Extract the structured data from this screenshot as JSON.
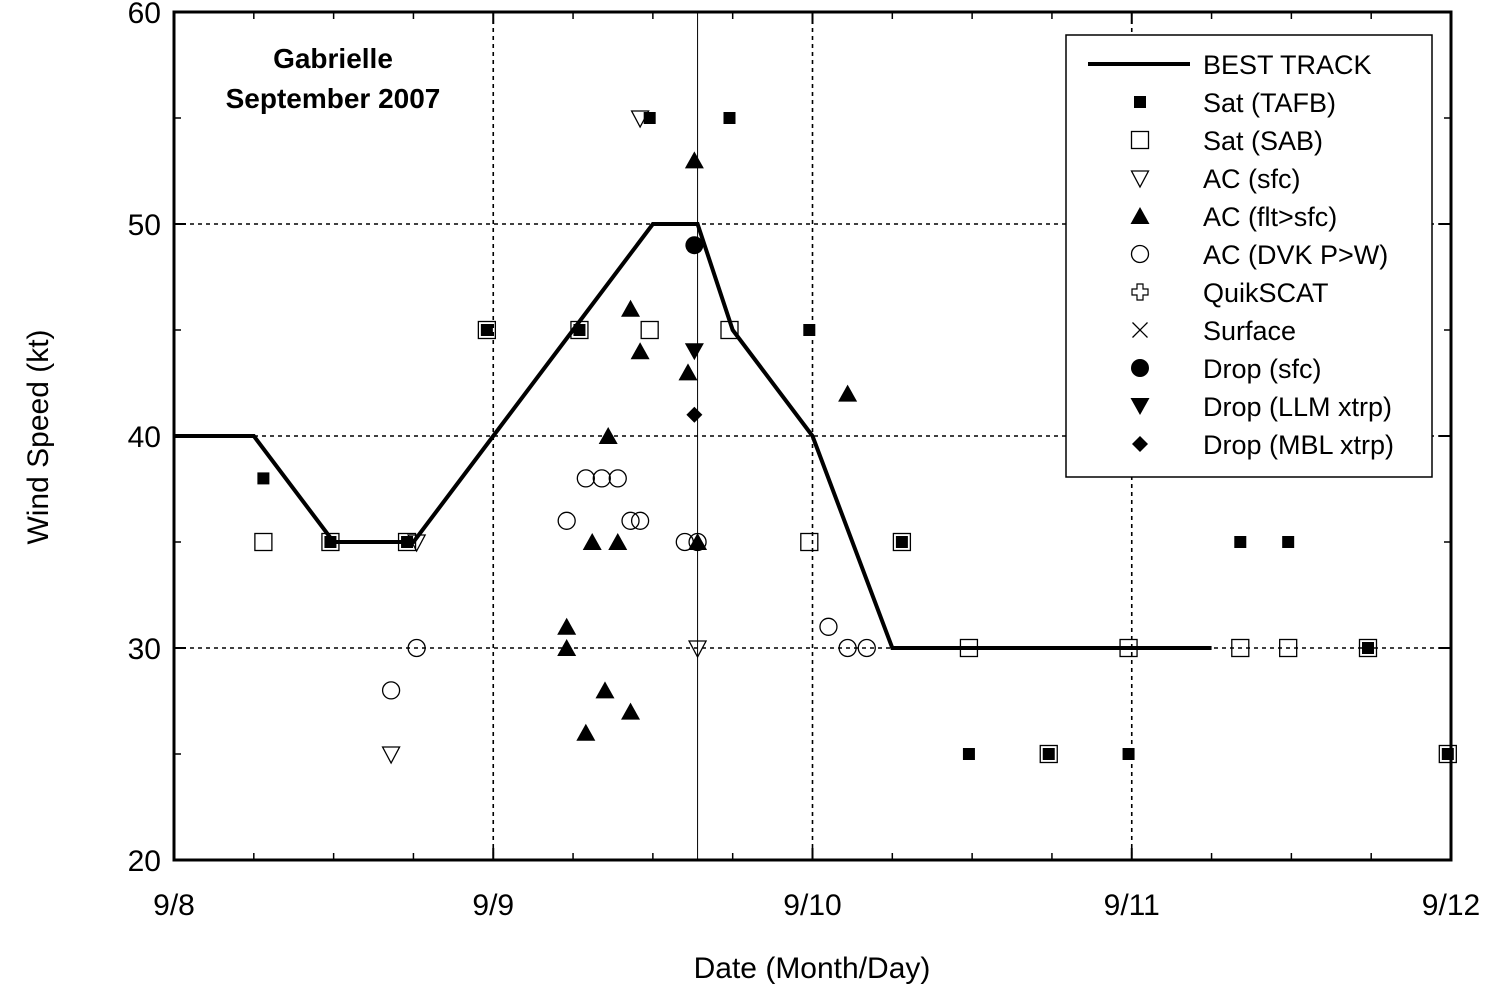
{
  "chart_data": {
    "type": "scatter",
    "title_lines": [
      "Gabrielle",
      "September 2007"
    ],
    "xlabel": "Date (Month/Day)",
    "ylabel": "Wind Speed (kt)",
    "x_unit": "days since 9/8",
    "xlim": [
      0,
      4
    ],
    "ylim": [
      20,
      60
    ],
    "x_ticks": [
      {
        "value": 0,
        "label": "9/8"
      },
      {
        "value": 1,
        "label": "9/9"
      },
      {
        "value": 2,
        "label": "9/10"
      },
      {
        "value": 3,
        "label": "9/11"
      },
      {
        "value": 4,
        "label": "9/12"
      }
    ],
    "y_ticks": [
      {
        "value": 20,
        "label": "20"
      },
      {
        "value": 30,
        "label": "30"
      },
      {
        "value": 40,
        "label": "40"
      },
      {
        "value": 50,
        "label": "50"
      },
      {
        "value": 60,
        "label": "60"
      }
    ],
    "grid": true,
    "legend_position": "top-right",
    "vertical_marker_x": 1.64,
    "series": [
      {
        "name": "BEST TRACK",
        "marker": "line",
        "points": [
          [
            0,
            40
          ],
          [
            0.25,
            40
          ],
          [
            0.5,
            35
          ],
          [
            0.75,
            35
          ],
          [
            1.0,
            40
          ],
          [
            1.25,
            45
          ],
          [
            1.5,
            50
          ],
          [
            1.64,
            50
          ],
          [
            1.75,
            45
          ],
          [
            2.0,
            40
          ],
          [
            2.25,
            30
          ],
          [
            2.5,
            30
          ],
          [
            2.75,
            30
          ],
          [
            3.0,
            30
          ],
          [
            3.25,
            30
          ]
        ]
      },
      {
        "name": "Sat (TAFB)",
        "marker": "filled-square",
        "points": [
          [
            0.28,
            38
          ],
          [
            0.49,
            35
          ],
          [
            0.73,
            35
          ],
          [
            0.98,
            45
          ],
          [
            1.27,
            45
          ],
          [
            1.49,
            55
          ],
          [
            1.74,
            55
          ],
          [
            1.99,
            45
          ],
          [
            2.28,
            35
          ],
          [
            2.49,
            25
          ],
          [
            2.74,
            25
          ],
          [
            2.99,
            25
          ],
          [
            3.34,
            35
          ],
          [
            3.49,
            35
          ],
          [
            3.74,
            30
          ],
          [
            3.99,
            25
          ]
        ]
      },
      {
        "name": "Sat (SAB)",
        "marker": "open-square",
        "points": [
          [
            0.28,
            35
          ],
          [
            0.49,
            35
          ],
          [
            0.73,
            35
          ],
          [
            0.98,
            45
          ],
          [
            1.27,
            45
          ],
          [
            1.49,
            45
          ],
          [
            1.74,
            45
          ],
          [
            1.99,
            35
          ],
          [
            2.28,
            35
          ],
          [
            2.49,
            30
          ],
          [
            2.74,
            25
          ],
          [
            2.99,
            30
          ],
          [
            3.34,
            30
          ],
          [
            3.49,
            30
          ],
          [
            3.74,
            30
          ],
          [
            3.99,
            25
          ]
        ]
      },
      {
        "name": "AC (sfc)",
        "marker": "open-triangle-down",
        "points": [
          [
            0.68,
            25
          ],
          [
            0.76,
            35
          ],
          [
            1.46,
            55
          ],
          [
            1.64,
            30
          ]
        ]
      },
      {
        "name": "AC (flt>sfc)",
        "marker": "filled-triangle-up",
        "points": [
          [
            1.23,
            31
          ],
          [
            1.23,
            30
          ],
          [
            1.29,
            26
          ],
          [
            1.31,
            35
          ],
          [
            1.35,
            28
          ],
          [
            1.36,
            40
          ],
          [
            1.39,
            35
          ],
          [
            1.43,
            46
          ],
          [
            1.43,
            27
          ],
          [
            1.46,
            44
          ],
          [
            1.61,
            43
          ],
          [
            1.63,
            53
          ],
          [
            1.64,
            35
          ],
          [
            2.11,
            42
          ]
        ]
      },
      {
        "name": "AC (DVK P>W)",
        "marker": "open-circle",
        "points": [
          [
            0.68,
            28
          ],
          [
            0.76,
            30
          ],
          [
            1.23,
            36
          ],
          [
            1.29,
            38
          ],
          [
            1.34,
            38
          ],
          [
            1.39,
            38
          ],
          [
            1.43,
            36
          ],
          [
            1.46,
            36
          ],
          [
            1.6,
            35
          ],
          [
            1.64,
            35
          ],
          [
            2.05,
            31
          ],
          [
            2.11,
            30
          ],
          [
            2.17,
            30
          ]
        ]
      },
      {
        "name": "QuikSCAT",
        "marker": "open-cross",
        "points": []
      },
      {
        "name": "Surface",
        "marker": "x",
        "points": []
      },
      {
        "name": "Drop (sfc)",
        "marker": "filled-circle",
        "points": [
          [
            1.63,
            49
          ]
        ]
      },
      {
        "name": "Drop (LLM xtrp)",
        "marker": "filled-triangle-down",
        "points": [
          [
            1.63,
            44
          ]
        ]
      },
      {
        "name": "Drop (MBL xtrp)",
        "marker": "filled-diamond",
        "points": [
          [
            1.63,
            41
          ]
        ]
      }
    ]
  }
}
